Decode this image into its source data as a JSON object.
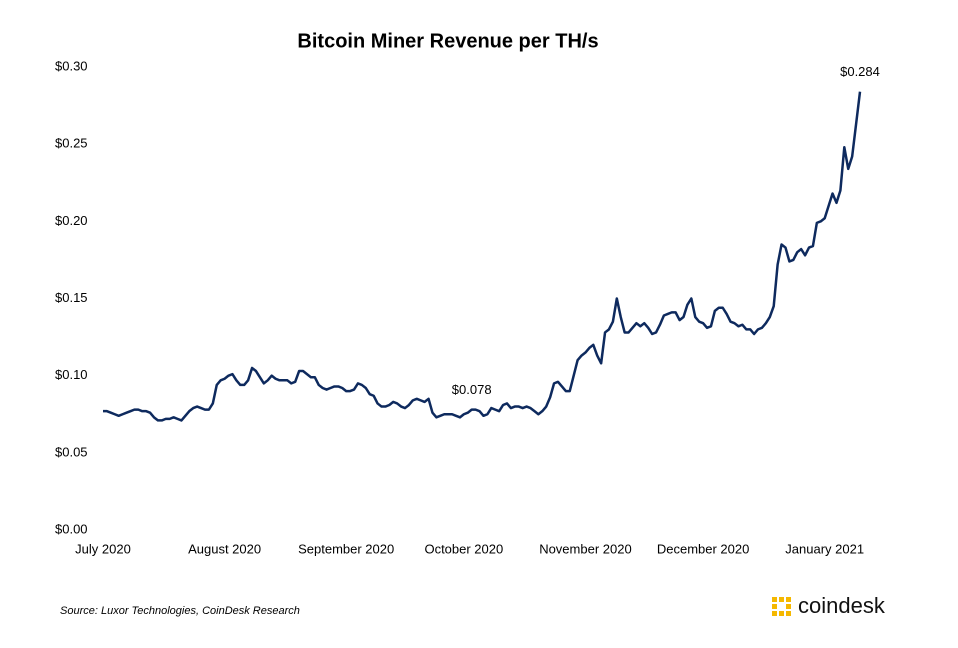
{
  "chart_data": {
    "type": "line",
    "title": "Bitcoin Miner Revenue per TH/s",
    "categories": [
      "July 2020",
      null,
      null,
      null,
      null,
      null,
      null,
      null,
      null,
      null,
      null,
      null,
      null,
      null,
      null,
      null,
      null,
      null,
      null,
      null,
      null,
      null,
      null,
      null,
      null,
      null,
      null,
      null,
      null,
      null,
      null,
      "August 2020",
      null,
      null,
      null,
      null,
      null,
      null,
      null,
      null,
      null,
      null,
      null,
      null,
      null,
      null,
      null,
      null,
      null,
      null,
      null,
      null,
      null,
      null,
      null,
      null,
      null,
      null,
      null,
      null,
      null,
      null,
      "September 2020",
      null,
      null,
      null,
      null,
      null,
      null,
      null,
      null,
      null,
      null,
      null,
      null,
      null,
      null,
      null,
      null,
      null,
      null,
      null,
      null,
      null,
      null,
      null,
      null,
      null,
      null,
      null,
      null,
      null,
      "October 2020",
      null,
      null,
      null,
      null,
      null,
      null,
      null,
      null,
      null,
      null,
      null,
      null,
      null,
      null,
      null,
      null,
      null,
      null,
      null,
      null,
      null,
      null,
      null,
      null,
      null,
      null,
      null,
      null,
      null,
      null,
      "November 2020",
      null,
      null,
      null,
      null,
      null,
      null,
      null,
      null,
      null,
      null,
      null,
      null,
      null,
      null,
      null,
      null,
      null,
      null,
      null,
      null,
      null,
      null,
      null,
      null,
      null,
      null,
      null,
      null,
      null,
      "December 2020",
      null,
      null,
      null,
      null,
      null,
      null,
      null,
      null,
      null,
      null,
      null,
      null,
      null,
      null,
      null,
      null,
      null,
      null,
      null,
      null,
      null,
      null,
      null,
      null,
      null,
      null,
      null,
      null,
      null,
      null,
      "January 2021",
      null,
      null,
      null,
      null,
      null,
      null,
      null,
      null,
      null
    ],
    "series": [
      {
        "name": "Bitcoin Miner Revenue per TH/s",
        "color": "#0e2a5e",
        "values": [
          0.077,
          0.077,
          0.076,
          0.075,
          0.074,
          0.075,
          0.076,
          0.077,
          0.078,
          0.078,
          0.077,
          0.077,
          0.076,
          0.073,
          0.071,
          0.071,
          0.072,
          0.072,
          0.073,
          0.072,
          0.071,
          0.074,
          0.077,
          0.079,
          0.08,
          0.079,
          0.078,
          0.078,
          0.082,
          0.094,
          0.097,
          0.098,
          0.1,
          0.101,
          0.097,
          0.094,
          0.094,
          0.097,
          0.105,
          0.103,
          0.099,
          0.095,
          0.097,
          0.1,
          0.098,
          0.097,
          0.097,
          0.097,
          0.095,
          0.096,
          0.103,
          0.103,
          0.101,
          0.099,
          0.099,
          0.094,
          0.092,
          0.091,
          0.092,
          0.093,
          0.093,
          0.092,
          0.09,
          0.09,
          0.091,
          0.095,
          0.094,
          0.092,
          0.088,
          0.087,
          0.082,
          0.08,
          0.08,
          0.081,
          0.083,
          0.082,
          0.08,
          0.079,
          0.081,
          0.084,
          0.085,
          0.084,
          0.083,
          0.085,
          0.076,
          0.073,
          0.074,
          0.075,
          0.075,
          0.075,
          0.074,
          0.073,
          0.075,
          0.076,
          0.078,
          0.078,
          0.077,
          0.074,
          0.075,
          0.079,
          0.078,
          0.077,
          0.081,
          0.082,
          0.079,
          0.08,
          0.08,
          0.079,
          0.08,
          0.079,
          0.077,
          0.075,
          0.077,
          0.08,
          0.086,
          0.095,
          0.096,
          0.093,
          0.09,
          0.09,
          0.1,
          0.11,
          0.113,
          0.115,
          0.118,
          0.12,
          0.113,
          0.108,
          0.128,
          0.13,
          0.135,
          0.15,
          0.138,
          0.128,
          0.128,
          0.131,
          0.134,
          0.132,
          0.134,
          0.131,
          0.127,
          0.128,
          0.133,
          0.139,
          0.14,
          0.141,
          0.141,
          0.136,
          0.138,
          0.146,
          0.15,
          0.138,
          0.135,
          0.134,
          0.131,
          0.132,
          0.142,
          0.144,
          0.144,
          0.14,
          0.135,
          0.134,
          0.132,
          0.133,
          0.13,
          0.13,
          0.127,
          0.13,
          0.131,
          0.134,
          0.138,
          0.145,
          0.172,
          0.185,
          0.183,
          0.174,
          0.175,
          0.18,
          0.182,
          0.178,
          0.183,
          0.184,
          0.199,
          0.2,
          0.202,
          0.21,
          0.218,
          0.212,
          0.22,
          0.248,
          0.234,
          0.242,
          0.263,
          0.284
        ],
        "value_labels": [
          null,
          null,
          null,
          null,
          null,
          null,
          null,
          null,
          null,
          null,
          null,
          null,
          null,
          null,
          null,
          null,
          null,
          null,
          null,
          null,
          null,
          null,
          null,
          null,
          null,
          null,
          null,
          null,
          null,
          null,
          null,
          null,
          null,
          null,
          null,
          null,
          null,
          null,
          null,
          null,
          null,
          null,
          null,
          null,
          null,
          null,
          null,
          null,
          null,
          null,
          null,
          null,
          null,
          null,
          null,
          null,
          null,
          null,
          null,
          null,
          null,
          null,
          null,
          null,
          null,
          null,
          null,
          null,
          null,
          null,
          null,
          null,
          null,
          null,
          null,
          null,
          null,
          null,
          null,
          null,
          null,
          null,
          null,
          null,
          null,
          null,
          null,
          null,
          null,
          null,
          null,
          null,
          null,
          null,
          "$0.078",
          null,
          null,
          null,
          null,
          null,
          null,
          null,
          null,
          null,
          null,
          null,
          null,
          null,
          null,
          null,
          null,
          null,
          null,
          null,
          null,
          null,
          null,
          null,
          null,
          null,
          null,
          null,
          null,
          null,
          null,
          null,
          null,
          null,
          null,
          null,
          null,
          null,
          null,
          null,
          null,
          null,
          null,
          null,
          null,
          null,
          null,
          null,
          null,
          null,
          null,
          null,
          null,
          null,
          null,
          null,
          null,
          null,
          null,
          null,
          null,
          null,
          null,
          null,
          null,
          null,
          null,
          null,
          null,
          null,
          null,
          null,
          null,
          null,
          null,
          null,
          null,
          null,
          null,
          null,
          null,
          null,
          null,
          null,
          null,
          null,
          null,
          null,
          null,
          null,
          null,
          null,
          null,
          null,
          null,
          null,
          null,
          null,
          null,
          "$0.284"
        ]
      }
    ],
    "ylim": [
      0,
      0.3
    ],
    "yticks": [
      {
        "value": 0,
        "label": "$0.00"
      },
      {
        "value": 0.05,
        "label": "$0.05"
      },
      {
        "value": 0.1,
        "label": "$0.10"
      },
      {
        "value": 0.15,
        "label": "$0.15"
      },
      {
        "value": 0.2,
        "label": "$0.20"
      },
      {
        "value": 0.25,
        "label": "$0.25"
      },
      {
        "value": 0.3,
        "label": "$0.30"
      }
    ],
    "grid": false,
    "legend": false
  },
  "footer": {
    "source": "Source: Luxor Technologies, CoinDesk Research",
    "logo": "coindesk"
  }
}
